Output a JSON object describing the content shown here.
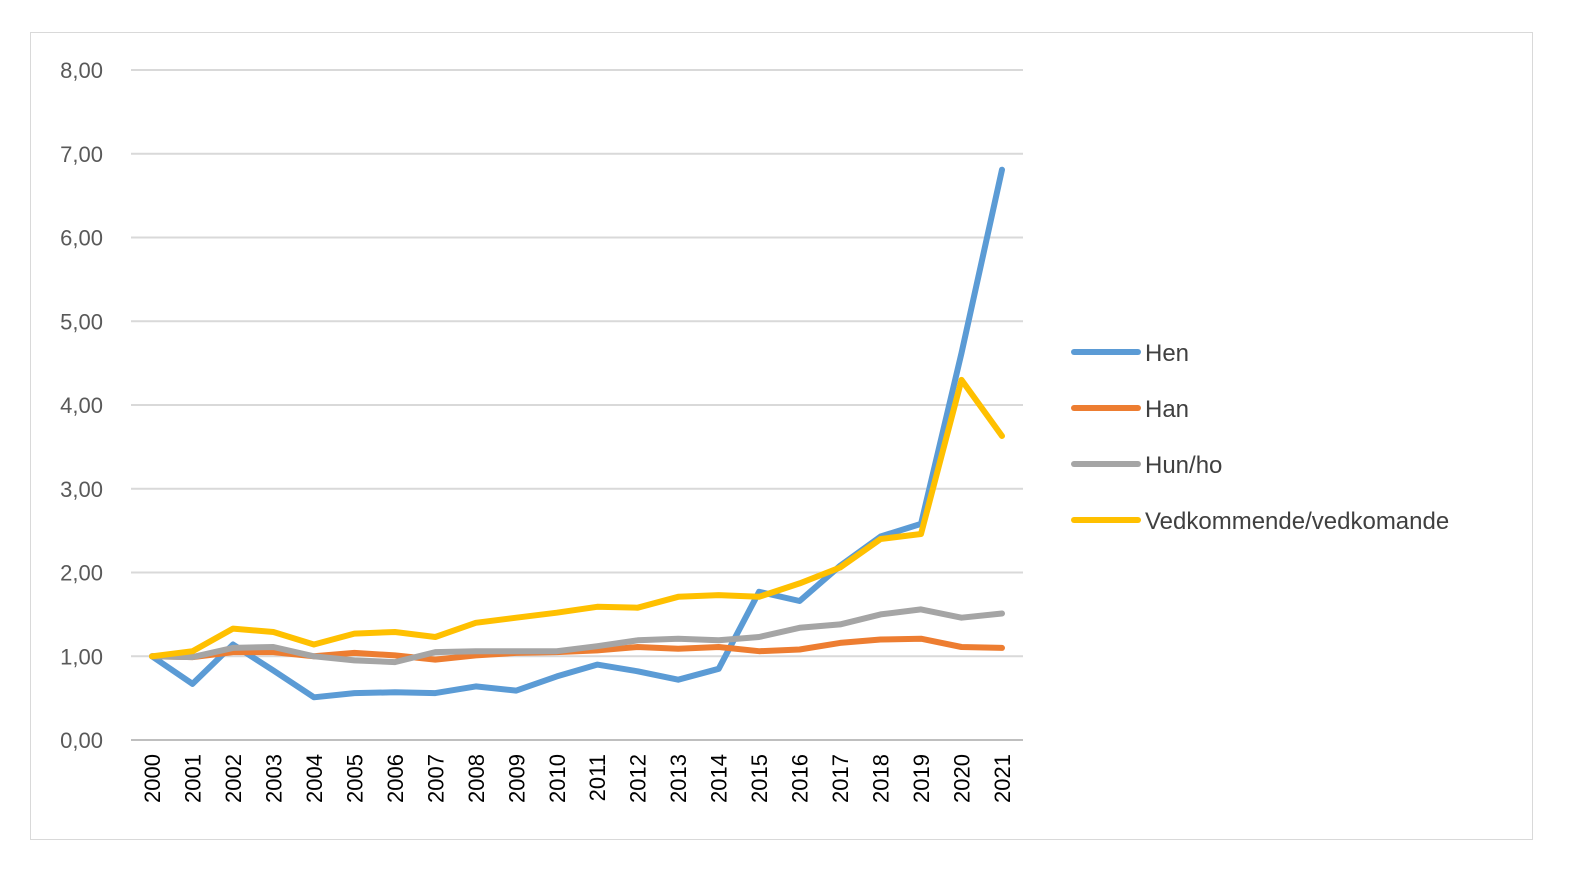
{
  "chart_data": {
    "type": "line",
    "title": "",
    "xlabel": "",
    "ylabel": "",
    "x": [
      "2000",
      "2001",
      "2002",
      "2003",
      "2004",
      "2005",
      "2006",
      "2007",
      "2008",
      "2009",
      "2010",
      "2011",
      "2012",
      "2013",
      "2014",
      "2015",
      "2016",
      "2017",
      "2018",
      "2019",
      "2020",
      "2021"
    ],
    "y_ticks": [
      "0,00",
      "1,00",
      "2,00",
      "3,00",
      "4,00",
      "5,00",
      "6,00",
      "7,00",
      "8,00"
    ],
    "ylim": [
      0,
      8
    ],
    "grid": true,
    "legend_position": "right",
    "series": [
      {
        "name": "Hen",
        "color": "#5b9bd5",
        "values": [
          1.0,
          0.67,
          1.14,
          0.83,
          0.51,
          0.56,
          0.57,
          0.56,
          0.64,
          0.59,
          0.76,
          0.9,
          0.82,
          0.72,
          0.85,
          1.77,
          1.66,
          2.08,
          2.43,
          2.58,
          4.62,
          6.81
        ]
      },
      {
        "name": "Han",
        "color": "#ed7d31",
        "values": [
          1.0,
          0.99,
          1.05,
          1.05,
          1.0,
          1.04,
          1.01,
          0.96,
          1.01,
          1.04,
          1.05,
          1.07,
          1.11,
          1.09,
          1.11,
          1.06,
          1.08,
          1.16,
          1.2,
          1.21,
          1.11,
          1.1
        ]
      },
      {
        "name": "Hun/ho",
        "color": "#a5a5a5",
        "values": [
          1.0,
          0.99,
          1.1,
          1.11,
          1.0,
          0.95,
          0.93,
          1.05,
          1.06,
          1.06,
          1.06,
          1.12,
          1.19,
          1.21,
          1.19,
          1.23,
          1.34,
          1.38,
          1.5,
          1.56,
          1.46,
          1.51
        ]
      },
      {
        "name": "Vedkommende/vedkomande",
        "color": "#ffc000",
        "values": [
          1.0,
          1.06,
          1.33,
          1.29,
          1.14,
          1.27,
          1.29,
          1.23,
          1.4,
          1.46,
          1.52,
          1.59,
          1.58,
          1.71,
          1.73,
          1.71,
          1.87,
          2.06,
          2.4,
          2.46,
          4.3,
          3.63
        ]
      }
    ]
  }
}
